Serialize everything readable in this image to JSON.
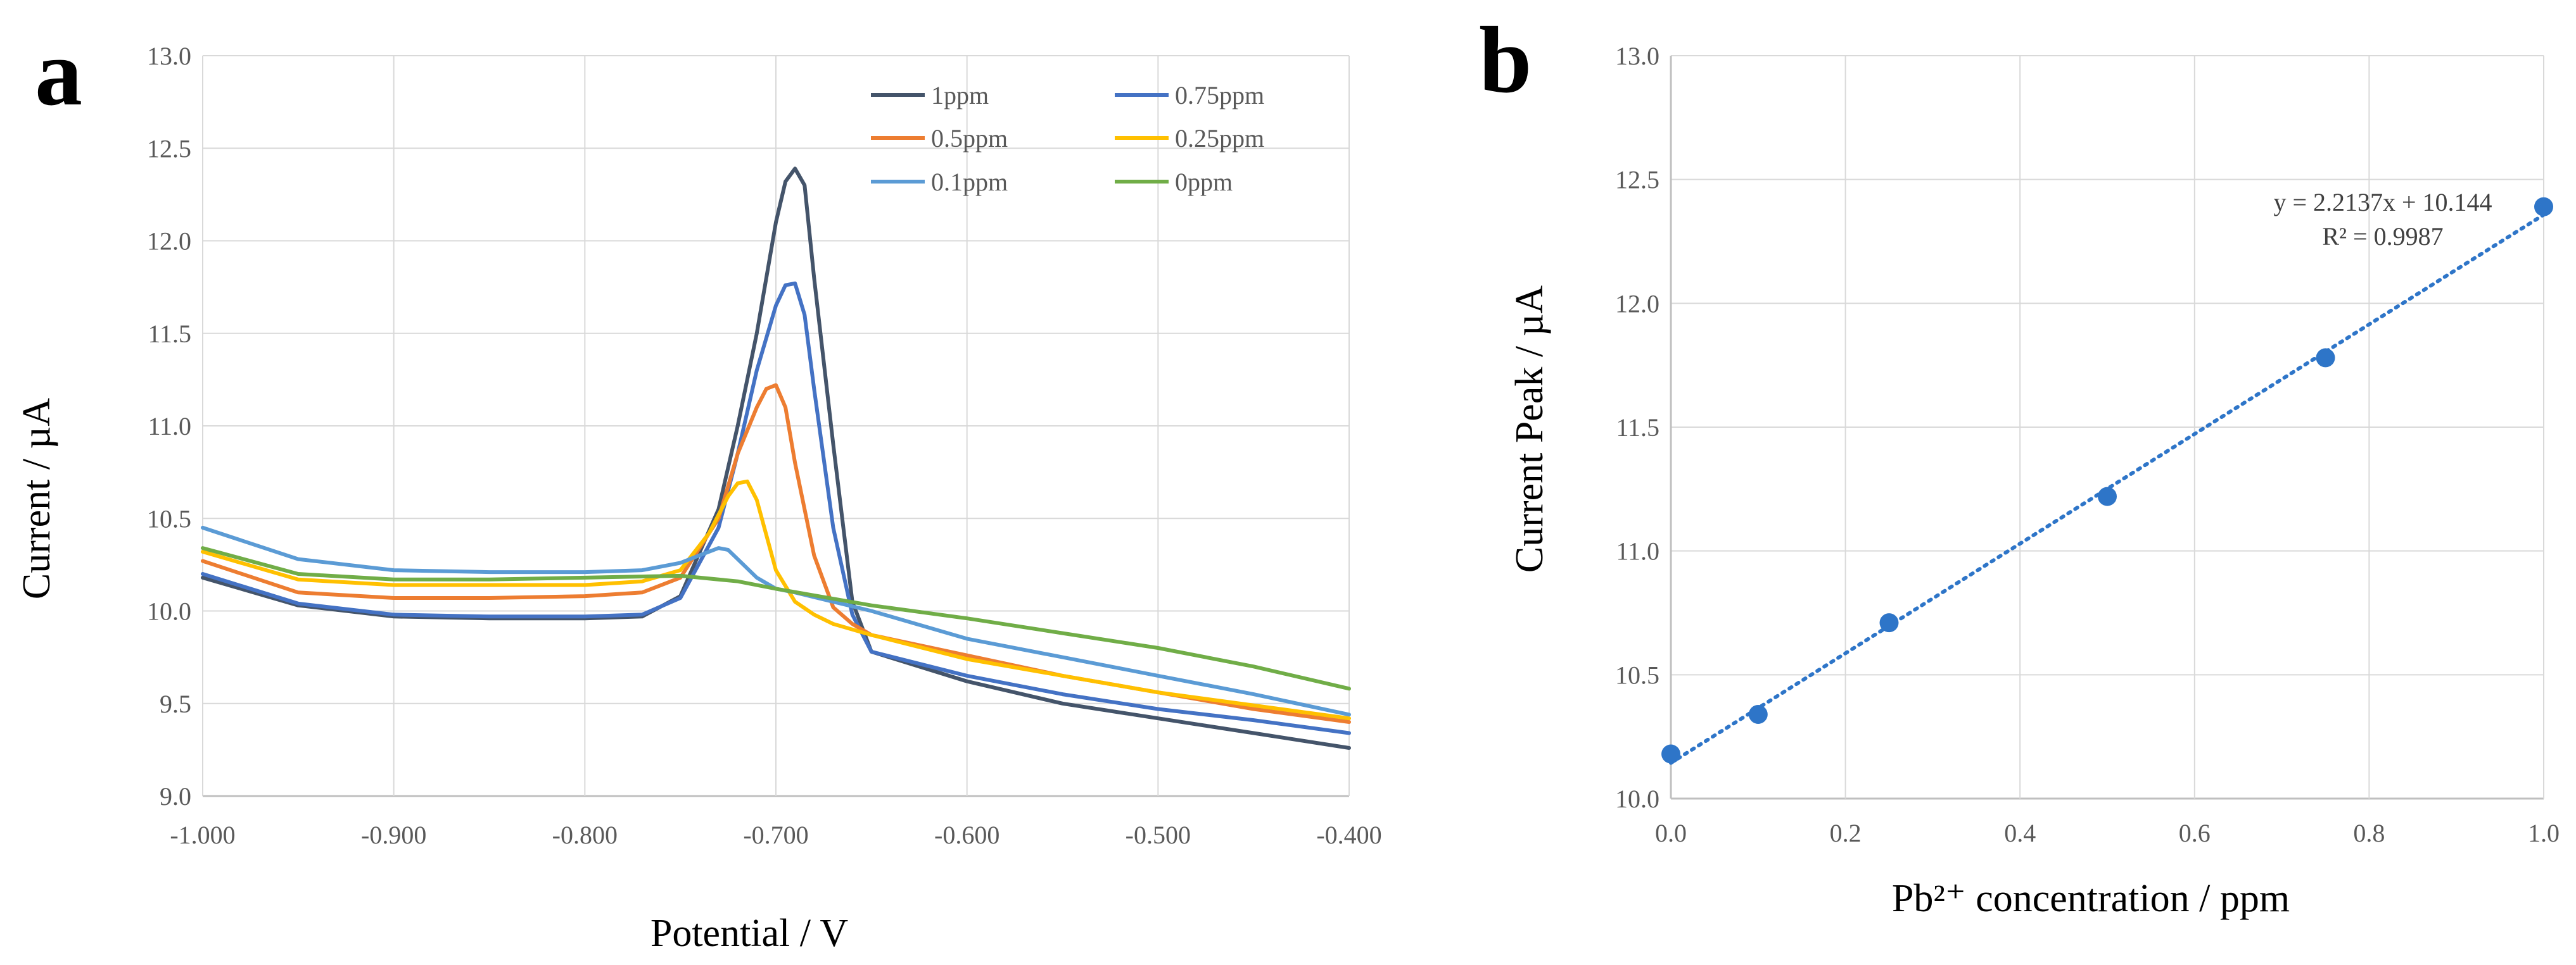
{
  "chart_data": [
    {
      "panel_label": "a",
      "type": "line",
      "xlabel": "Potential / V",
      "ylabel": "Current  / µA",
      "xlim": [
        -1.0,
        -0.4
      ],
      "ylim": [
        9.0,
        13.0
      ],
      "x_ticks": [
        -1.0,
        -0.9,
        -0.8,
        -0.7,
        -0.6,
        -0.5,
        -0.4
      ],
      "x_tick_labels": [
        "-1.000",
        "-0.900",
        "-0.800",
        "-0.700",
        "-0.600",
        "-0.500",
        "-0.400"
      ],
      "y_ticks": [
        9.0,
        9.5,
        10.0,
        10.5,
        11.0,
        11.5,
        12.0,
        12.5,
        13.0
      ],
      "y_tick_labels": [
        "9.0",
        "9.5",
        "10.0",
        "10.5",
        "11.0",
        "11.5",
        "12.0",
        "12.5",
        "13.0"
      ],
      "grid": true,
      "legend_position": "top-right",
      "series": [
        {
          "name": "1ppm",
          "color": "#44546a",
          "x": [
            -1.0,
            -0.95,
            -0.9,
            -0.85,
            -0.8,
            -0.77,
            -0.75,
            -0.73,
            -0.72,
            -0.71,
            -0.7,
            -0.695,
            -0.69,
            -0.685,
            -0.68,
            -0.67,
            -0.66,
            -0.65,
            -0.6,
            -0.55,
            -0.5,
            -0.45,
            -0.4
          ],
          "y": [
            10.18,
            10.03,
            9.97,
            9.96,
            9.96,
            9.97,
            10.08,
            10.55,
            11.0,
            11.5,
            12.1,
            12.32,
            12.39,
            12.3,
            11.8,
            10.9,
            10.05,
            9.78,
            9.62,
            9.5,
            9.42,
            9.34,
            9.26
          ]
        },
        {
          "name": "0.75ppm",
          "color": "#4472c4",
          "x": [
            -1.0,
            -0.95,
            -0.9,
            -0.85,
            -0.8,
            -0.77,
            -0.75,
            -0.73,
            -0.72,
            -0.71,
            -0.7,
            -0.695,
            -0.69,
            -0.685,
            -0.68,
            -0.67,
            -0.66,
            -0.65,
            -0.6,
            -0.55,
            -0.5,
            -0.45,
            -0.4
          ],
          "y": [
            10.2,
            10.04,
            9.98,
            9.97,
            9.97,
            9.98,
            10.07,
            10.45,
            10.85,
            11.3,
            11.65,
            11.76,
            11.77,
            11.6,
            11.2,
            10.45,
            9.98,
            9.78,
            9.65,
            9.55,
            9.47,
            9.41,
            9.34
          ]
        },
        {
          "name": "0.5ppm",
          "color": "#ed7d31",
          "x": [
            -1.0,
            -0.95,
            -0.9,
            -0.85,
            -0.8,
            -0.77,
            -0.75,
            -0.73,
            -0.72,
            -0.71,
            -0.705,
            -0.7,
            -0.695,
            -0.69,
            -0.68,
            -0.67,
            -0.66,
            -0.65,
            -0.6,
            -0.55,
            -0.5,
            -0.45,
            -0.4
          ],
          "y": [
            10.27,
            10.1,
            10.07,
            10.07,
            10.08,
            10.1,
            10.18,
            10.5,
            10.85,
            11.1,
            11.2,
            11.22,
            11.1,
            10.8,
            10.3,
            10.02,
            9.93,
            9.87,
            9.76,
            9.65,
            9.56,
            9.47,
            9.4
          ]
        },
        {
          "name": "0.25ppm",
          "color": "#ffc000",
          "x": [
            -1.0,
            -0.95,
            -0.9,
            -0.85,
            -0.8,
            -0.77,
            -0.75,
            -0.735,
            -0.725,
            -0.72,
            -0.715,
            -0.71,
            -0.7,
            -0.69,
            -0.68,
            -0.67,
            -0.65,
            -0.6,
            -0.55,
            -0.5,
            -0.45,
            -0.4
          ],
          "y": [
            10.32,
            10.17,
            10.14,
            10.14,
            10.14,
            10.16,
            10.22,
            10.42,
            10.62,
            10.69,
            10.7,
            10.6,
            10.22,
            10.05,
            9.98,
            9.93,
            9.87,
            9.74,
            9.65,
            9.56,
            9.49,
            9.42
          ]
        },
        {
          "name": "0.1ppm",
          "color": "#5b9bd5",
          "x": [
            -1.0,
            -0.95,
            -0.9,
            -0.85,
            -0.8,
            -0.77,
            -0.75,
            -0.74,
            -0.73,
            -0.725,
            -0.72,
            -0.71,
            -0.7,
            -0.69,
            -0.67,
            -0.65,
            -0.6,
            -0.55,
            -0.5,
            -0.45,
            -0.4
          ],
          "y": [
            10.45,
            10.28,
            10.22,
            10.21,
            10.21,
            10.22,
            10.26,
            10.3,
            10.34,
            10.33,
            10.28,
            10.18,
            10.12,
            10.1,
            10.05,
            10.0,
            9.85,
            9.75,
            9.65,
            9.55,
            9.44
          ]
        },
        {
          "name": "0ppm",
          "color": "#70ad47",
          "x": [
            -1.0,
            -0.95,
            -0.9,
            -0.85,
            -0.8,
            -0.75,
            -0.72,
            -0.7,
            -0.65,
            -0.6,
            -0.55,
            -0.5,
            -0.45,
            -0.4
          ],
          "y": [
            10.34,
            10.2,
            10.17,
            10.17,
            10.18,
            10.19,
            10.16,
            10.12,
            10.03,
            9.96,
            9.88,
            9.8,
            9.7,
            9.58
          ]
        }
      ]
    },
    {
      "panel_label": "b",
      "type": "scatter",
      "xlabel": "Pb²⁺ concentration / ppm",
      "ylabel": "Current Peak  / µA",
      "xlim": [
        0.0,
        1.0
      ],
      "ylim": [
        10.0,
        13.0
      ],
      "x_ticks": [
        0.0,
        0.2,
        0.4,
        0.6,
        0.8,
        1.0
      ],
      "x_tick_labels": [
        "0.0",
        "0.2",
        "0.4",
        "0.6",
        "0.8",
        "1.0"
      ],
      "y_ticks": [
        10.0,
        10.5,
        11.0,
        11.5,
        12.0,
        12.5,
        13.0
      ],
      "y_tick_labels": [
        "10.0",
        "10.5",
        "11.0",
        "11.5",
        "12.0",
        "12.5",
        "13.0"
      ],
      "grid": true,
      "series": [
        {
          "name": "Current Peak",
          "color": "#2e75c8",
          "x": [
            0.0,
            0.1,
            0.25,
            0.5,
            0.75,
            1.0
          ],
          "y": [
            10.18,
            10.34,
            10.71,
            11.22,
            11.78,
            12.39
          ]
        }
      ],
      "trendline": {
        "slope": 2.2137,
        "intercept": 10.144,
        "color": "#2e75c8"
      },
      "equation": "y = 2.2137x + 10.144",
      "r_squared": "R² = 0.9987"
    }
  ]
}
